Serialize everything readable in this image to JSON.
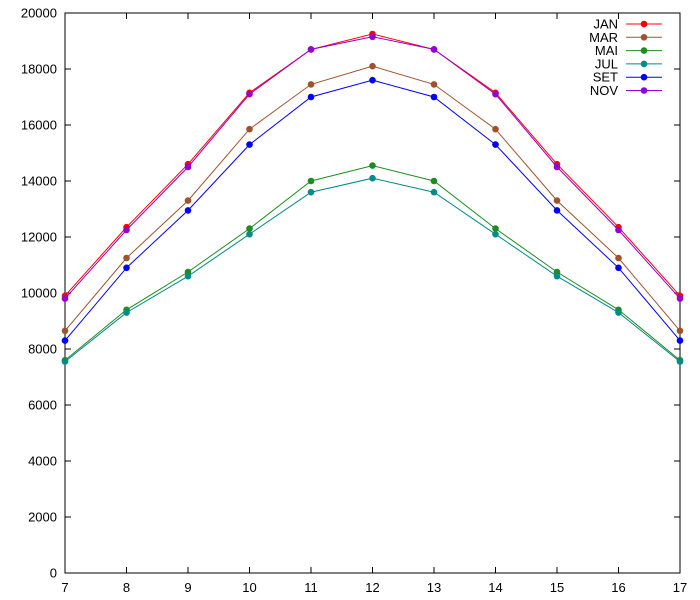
{
  "chart_data": {
    "type": "line",
    "title": "",
    "xlabel": "",
    "ylabel": "",
    "x": [
      7,
      8,
      9,
      10,
      11,
      12,
      13,
      14,
      15,
      16,
      17
    ],
    "xlim": [
      7,
      17
    ],
    "ylim": [
      0,
      20000
    ],
    "xticks": [
      "7",
      "8",
      "9",
      "10",
      "11",
      "12",
      "13",
      "14",
      "15",
      "16",
      "17"
    ],
    "yticks": [
      "0",
      "2000",
      "4000",
      "6000",
      "8000",
      "10000",
      "12000",
      "14000",
      "16000",
      "18000",
      "20000"
    ],
    "grid": false,
    "legend_position": "top-right",
    "series": [
      {
        "name": "JAN",
        "color": "#ff0000",
        "values": [
          9900,
          12350,
          14600,
          17150,
          18700,
          19250,
          18700,
          17150,
          14600,
          12350,
          9900
        ]
      },
      {
        "name": "MAR",
        "color": "#a0522d",
        "values": [
          8650,
          11250,
          13300,
          15850,
          17450,
          18100,
          17450,
          15850,
          13300,
          11250,
          8650
        ]
      },
      {
        "name": "MAI",
        "color": "#1e8c1e",
        "values": [
          7600,
          9400,
          10750,
          12300,
          14000,
          14550,
          14000,
          12300,
          10750,
          9400,
          7600
        ]
      },
      {
        "name": "JUL",
        "color": "#008b8b",
        "values": [
          7550,
          9300,
          10600,
          12100,
          13600,
          14100,
          13600,
          12100,
          10600,
          9300,
          7550
        ]
      },
      {
        "name": "SET",
        "color": "#0000ff",
        "values": [
          8300,
          10900,
          12950,
          15300,
          17000,
          17600,
          17000,
          15300,
          12950,
          10900,
          8300
        ]
      },
      {
        "name": "NOV",
        "color": "#9400d3",
        "values": [
          9800,
          12250,
          14500,
          17100,
          18700,
          19150,
          18700,
          17100,
          14500,
          12250,
          9800
        ]
      }
    ]
  }
}
